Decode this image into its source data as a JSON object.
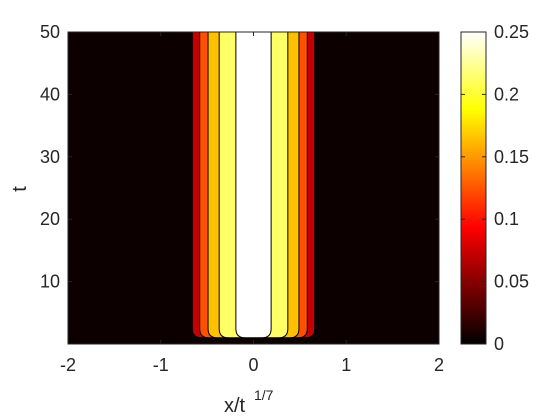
{
  "chart_data": {
    "type": "heatmap",
    "subtype": "filled-contour",
    "xlabel": "x/t",
    "xlabel_exponent": "1/7",
    "ylabel": "t",
    "xlim": [
      -2,
      2
    ],
    "ylim": [
      0,
      50
    ],
    "x_ticks": [
      "-2",
      "-1",
      "0",
      "1",
      "2"
    ],
    "y_ticks": [
      "10",
      "20",
      "30",
      "40",
      "50"
    ],
    "colormap": "hot",
    "colorbar": {
      "range": [
        0,
        0.25
      ],
      "ticks": [
        "0",
        "0.05",
        "0.1",
        "0.15",
        "0.2",
        "0.25"
      ]
    },
    "contour_levels": [
      0,
      0.05,
      0.1,
      0.15,
      0.2,
      0.25
    ],
    "level_colors": [
      "#0d0000",
      "#c40000",
      "#ff5000",
      "#ffc000",
      "#ffff66",
      "#ffffff"
    ],
    "band_edges_x": [
      {
        "level": 0.05,
        "x": 0.66
      },
      {
        "level": 0.1,
        "x": 0.58
      },
      {
        "level": 0.15,
        "x": 0.49
      },
      {
        "level": 0.2,
        "x": 0.37
      },
      {
        "level": 0.25,
        "x": 0.19
      }
    ],
    "band_onset_t": 1.0,
    "grid": false
  }
}
